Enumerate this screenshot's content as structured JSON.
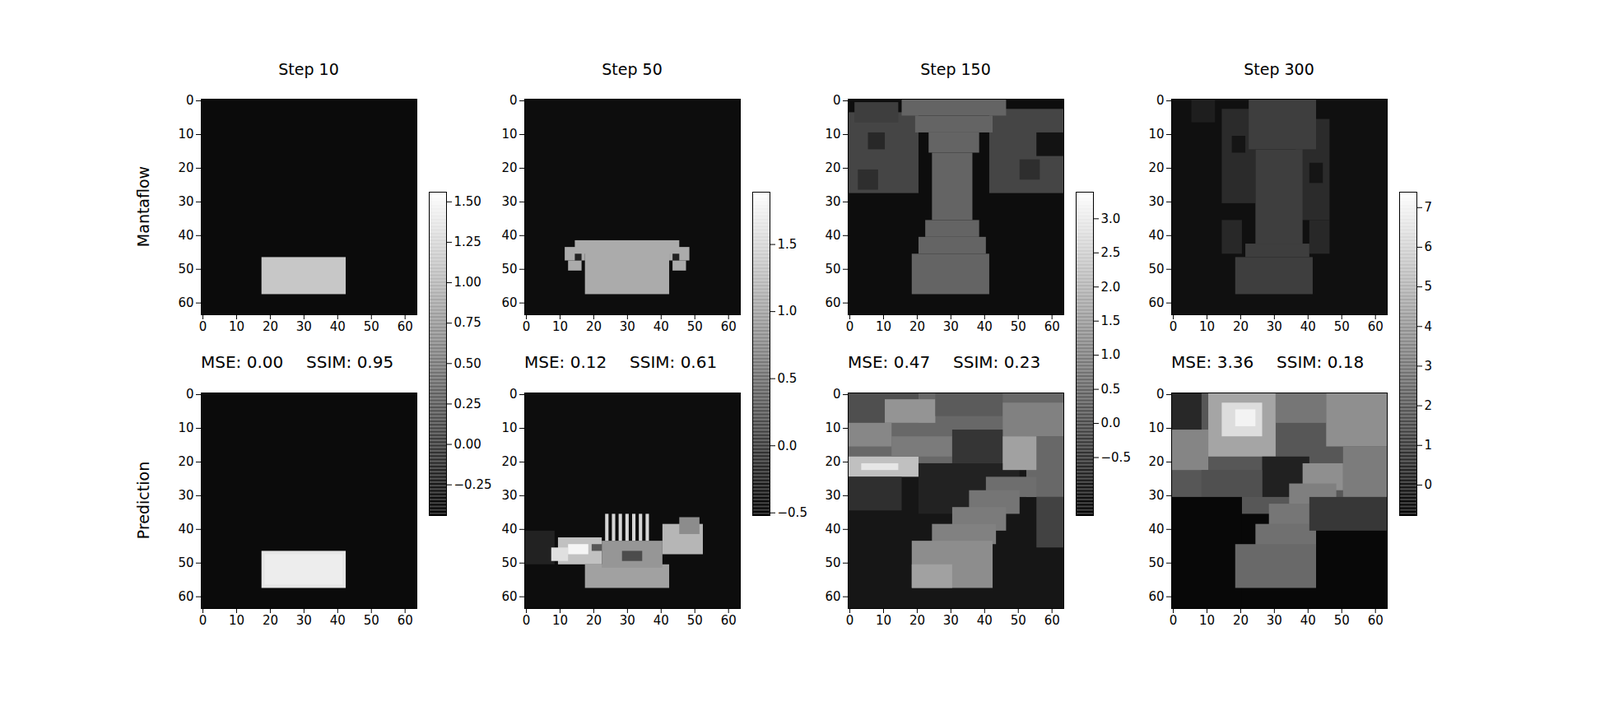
{
  "row_labels": [
    "Mantaflow",
    "Prediction"
  ],
  "chart_data": [
    {
      "type": "heatmap",
      "title": "Step 10",
      "xlim": [
        -0.5,
        63.5
      ],
      "ylim": [
        63.5,
        -0.5
      ],
      "xticks": [
        0,
        10,
        20,
        30,
        40,
        50,
        60
      ],
      "yticks": [
        0,
        10,
        20,
        30,
        40,
        50,
        60
      ],
      "annotations": [
        "MSE: 0.00",
        "SSIM: 0.95"
      ],
      "colorbar": {
        "range": [
          -0.44,
          1.56
        ],
        "ticks": [
          {
            "value": -0.25,
            "label": "−0.25"
          },
          {
            "value": 0,
            "label": "0.00"
          },
          0.25,
          {
            "value": 0.5,
            "label": "0.50"
          },
          0.75,
          {
            "value": 1,
            "label": "1.00"
          },
          1.25,
          {
            "value": 1.5,
            "label": "1.50"
          }
        ]
      },
      "cells": [
        [
          [
            -0.5,
            -0.5,
            63.5,
            63.5,
            -0.35
          ],
          [
            17.5,
            46.5,
            42.5,
            57.5,
            1.12
          ]
        ],
        [
          [
            -0.5,
            -0.5,
            63.5,
            63.5,
            -0.35
          ],
          [
            17.5,
            46.5,
            42.5,
            57.5,
            1.36
          ],
          [
            18.5,
            47.5,
            41.5,
            56.5,
            1.42
          ]
        ]
      ]
    },
    {
      "type": "heatmap",
      "title": "Step 50",
      "xlim": [
        -0.5,
        63.5
      ],
      "ylim": [
        63.5,
        -0.5
      ],
      "xticks": [
        0,
        10,
        20,
        30,
        40,
        50,
        60
      ],
      "yticks": [
        0,
        10,
        20,
        30,
        40,
        50,
        60
      ],
      "annotations": [
        "MSE: 0.12",
        "SSIM: 0.61"
      ],
      "colorbar": {
        "range": [
          -0.52,
          1.89
        ],
        "ticks": [
          {
            "value": -0.5,
            "label": "−0.5"
          },
          {
            "value": 0,
            "label": "0.0"
          },
          0.5,
          {
            "value": 1,
            "label": "1.0"
          },
          1.5
        ]
      },
      "cells": [
        [
          [
            -0.5,
            -0.5,
            63.5,
            63.5,
            -0.4
          ],
          [
            17.5,
            44.5,
            42.5,
            57.5,
            1.1
          ],
          [
            14.5,
            41.5,
            45.5,
            45.5,
            1.1
          ],
          [
            11.5,
            43.5,
            17.5,
            47.5,
            1.1
          ],
          [
            42.5,
            43.5,
            48.5,
            47.5,
            1.1
          ],
          [
            12.5,
            47.5,
            16.5,
            50.5,
            1.1
          ],
          [
            43.5,
            47.5,
            47.5,
            50.5,
            1.1
          ],
          [
            14.5,
            45.5,
            16.5,
            47.5,
            -0.2
          ],
          [
            43.5,
            45.5,
            45.5,
            47.5,
            -0.2
          ]
        ],
        [
          [
            -0.5,
            -0.5,
            63.5,
            63.5,
            -0.4
          ],
          [
            -0.5,
            40.5,
            8.5,
            50.5,
            -0.2
          ],
          [
            17.5,
            50.5,
            42.5,
            57.5,
            1.0
          ],
          [
            9.5,
            42.5,
            22.5,
            50.5,
            1.3
          ],
          [
            7.5,
            45.5,
            12.5,
            49.5,
            1.6
          ],
          [
            22.5,
            43.5,
            40.5,
            51.5,
            0.9
          ],
          [
            40.5,
            38.5,
            52.5,
            47.5,
            1.2
          ],
          [
            45.5,
            36.5,
            51.5,
            41.5,
            0.8
          ],
          [
            12.5,
            44.5,
            18.5,
            47.5,
            1.8
          ],
          [
            28.5,
            46.5,
            34.5,
            49.5,
            0.2
          ],
          [
            19.5,
            44.5,
            22.5,
            46.5,
            0.3
          ],
          [
            23.5,
            35.5,
            24.5,
            43.5,
            1.5
          ],
          [
            25.5,
            35.5,
            26.5,
            43.5,
            1.5
          ],
          [
            27.5,
            35.5,
            28.5,
            43.5,
            1.5
          ],
          [
            29.5,
            35.5,
            30.5,
            43.5,
            1.5
          ],
          [
            31.5,
            35.5,
            32.5,
            43.5,
            1.5
          ],
          [
            33.5,
            35.5,
            34.5,
            43.5,
            1.5
          ],
          [
            35.5,
            35.5,
            36.5,
            43.5,
            1.5
          ]
        ]
      ]
    },
    {
      "type": "heatmap",
      "title": "Step 150",
      "xlim": [
        -0.5,
        63.5
      ],
      "ylim": [
        63.5,
        -0.5
      ],
      "xticks": [
        0,
        10,
        20,
        30,
        40,
        50,
        60
      ],
      "yticks": [
        0,
        10,
        20,
        30,
        40,
        50,
        60
      ],
      "annotations": [
        "MSE: 0.47",
        "SSIM: 0.23"
      ],
      "colorbar": {
        "range": [
          -1.35,
          3.39
        ],
        "ticks": [
          {
            "value": -0.5,
            "label": "−0.5"
          },
          {
            "value": 0,
            "label": "0.0"
          },
          0.5,
          {
            "value": 1,
            "label": "1.0"
          },
          1.5,
          {
            "value": 2,
            "label": "2.0"
          },
          2.5,
          {
            "value": 3,
            "label": "3.0"
          }
        ]
      },
      "cells": [
        [
          [
            -0.5,
            -0.5,
            63.5,
            63.5,
            -1.1
          ],
          [
            -0.5,
            3.5,
            20.5,
            27.5,
            -0.07
          ],
          [
            1.5,
            0.5,
            14.5,
            6.5,
            -0.2
          ],
          [
            5.5,
            9.5,
            10.5,
            14.5,
            -0.6
          ],
          [
            2.5,
            20.5,
            8.5,
            26.5,
            -0.5
          ],
          [
            41.5,
            2.5,
            63.5,
            27.5,
            -0.07
          ],
          [
            55.5,
            9.5,
            63.5,
            16.5,
            -1.0
          ],
          [
            50.5,
            17.5,
            56.5,
            23.5,
            -0.5
          ],
          [
            15.5,
            -0.5,
            46.5,
            4.5,
            0.5
          ],
          [
            19.5,
            4.5,
            42.5,
            9.5,
            0.5
          ],
          [
            23.5,
            9.5,
            38.5,
            15.5,
            0.5
          ],
          [
            24.5,
            15.5,
            36.5,
            35.5,
            0.5
          ],
          [
            22.5,
            35.5,
            38.5,
            40.5,
            0.5
          ],
          [
            20.5,
            40.5,
            40.5,
            45.5,
            0.5
          ],
          [
            18.5,
            45.5,
            41.5,
            57.5,
            0.5
          ]
        ],
        [
          [
            -0.5,
            -0.5,
            63.5,
            63.5,
            -0.94
          ],
          [
            -0.5,
            -0.5,
            63.5,
            20.5,
            0.58
          ],
          [
            -0.5,
            -0.5,
            20.5,
            8.5,
            0.12
          ],
          [
            10.5,
            1.5,
            25.5,
            8.5,
            1.4
          ],
          [
            25.5,
            -0.5,
            45.5,
            6.5,
            0.35
          ],
          [
            45.5,
            2.5,
            63.5,
            12.5,
            1.05
          ],
          [
            52.5,
            12.5,
            63.5,
            30.5,
            0.58
          ],
          [
            -0.5,
            8.5,
            12.5,
            15.5,
            1.16
          ],
          [
            -0.5,
            18.5,
            20.5,
            24.5,
            2.22
          ],
          [
            3.5,
            20.5,
            14.5,
            22.5,
            2.92
          ],
          [
            12.5,
            12.5,
            30.5,
            18.5,
            0.93
          ],
          [
            -0.5,
            24.5,
            15.5,
            34.5,
            -0.47
          ],
          [
            20.5,
            20.5,
            50.5,
            35.5,
            -0.71
          ],
          [
            30.5,
            10.5,
            45.5,
            20.5,
            -0.36
          ],
          [
            45.5,
            12.5,
            55.5,
            22.5,
            1.64
          ],
          [
            40.5,
            24.5,
            55.5,
            30.5,
            0.69
          ],
          [
            35.5,
            28.5,
            50.5,
            35.5,
            0.82
          ],
          [
            30.5,
            33.5,
            46.5,
            40.5,
            0.93
          ],
          [
            24.5,
            38.5,
            43.5,
            44.5,
            1.05
          ],
          [
            18.5,
            43.5,
            42.5,
            57.5,
            1.28
          ],
          [
            18.5,
            50.5,
            30.5,
            57.5,
            1.64
          ],
          [
            55.5,
            30.5,
            63.5,
            45.5,
            -0.12
          ]
        ]
      ]
    },
    {
      "type": "heatmap",
      "title": "Step 300",
      "xlim": [
        -0.5,
        63.5
      ],
      "ylim": [
        63.5,
        -0.5
      ],
      "xticks": [
        0,
        10,
        20,
        30,
        40,
        50,
        60
      ],
      "yticks": [
        0,
        10,
        20,
        30,
        40,
        50,
        60
      ],
      "annotations": [
        "MSE: 3.36",
        "SSIM: 0.18"
      ],
      "colorbar": {
        "range": [
          -0.77,
          7.39
        ],
        "ticks": [
          0,
          1,
          2,
          3,
          4,
          5,
          6,
          7
        ]
      },
      "cells": [
        [
          [
            -0.5,
            -0.5,
            63.5,
            63.5,
            -0.25
          ],
          [
            14.5,
            2.5,
            24.5,
            30.5,
            0.6
          ],
          [
            36.5,
            5.5,
            46.5,
            35.5,
            0.6
          ],
          [
            40.5,
            35.5,
            46.5,
            45.5,
            0.5
          ],
          [
            14.5,
            35.5,
            20.5,
            45.5,
            0.5
          ],
          [
            5.5,
            -0.5,
            12.5,
            6.5,
            0.2
          ],
          [
            17.5,
            10.5,
            21.5,
            15.5,
            -0.1
          ],
          [
            40.5,
            18.5,
            44.5,
            24.5,
            -0.1
          ],
          [
            22.5,
            -0.5,
            42.5,
            14.5,
            1.2
          ],
          [
            24.5,
            14.5,
            38.5,
            42.5,
            1.2
          ],
          [
            21.5,
            42.5,
            40.5,
            46.5,
            1.2
          ],
          [
            18.5,
            46.5,
            41.5,
            57.5,
            1.2
          ]
        ],
        [
          [
            -0.5,
            -0.5,
            63.5,
            63.5,
            -0.5
          ],
          [
            -0.5,
            -0.5,
            63.5,
            35.5,
            2.0
          ],
          [
            10.5,
            -0.5,
            30.5,
            18.5,
            4.5
          ],
          [
            14.5,
            2.5,
            26.5,
            12.5,
            6.3
          ],
          [
            18.5,
            4.5,
            24.5,
            9.5,
            7.0
          ],
          [
            -0.5,
            10.5,
            10.5,
            22.5,
            3.5
          ],
          [
            -0.5,
            -0.5,
            8.5,
            10.5,
            0.5
          ],
          [
            30.5,
            -0.5,
            45.5,
            8.5,
            3.0
          ],
          [
            45.5,
            -0.5,
            63.5,
            15.5,
            3.8
          ],
          [
            50.5,
            15.5,
            63.5,
            30.5,
            3.2
          ],
          [
            26.5,
            18.5,
            40.5,
            30.5,
            0.3
          ],
          [
            8.5,
            22.5,
            26.5,
            30.5,
            1.8
          ],
          [
            -0.5,
            30.5,
            20.5,
            63.5,
            -0.5
          ],
          [
            38.5,
            20.5,
            50.5,
            28.5,
            3.8
          ],
          [
            34.5,
            26.5,
            48.5,
            33.5,
            3.3
          ],
          [
            28.5,
            32.5,
            44.5,
            39.5,
            3.0
          ],
          [
            24.5,
            38.5,
            42.5,
            45.5,
            2.8
          ],
          [
            18.5,
            44.5,
            42.5,
            57.5,
            2.6
          ],
          [
            40.5,
            30.5,
            63.5,
            40.5,
            1.0
          ]
        ]
      ]
    }
  ]
}
